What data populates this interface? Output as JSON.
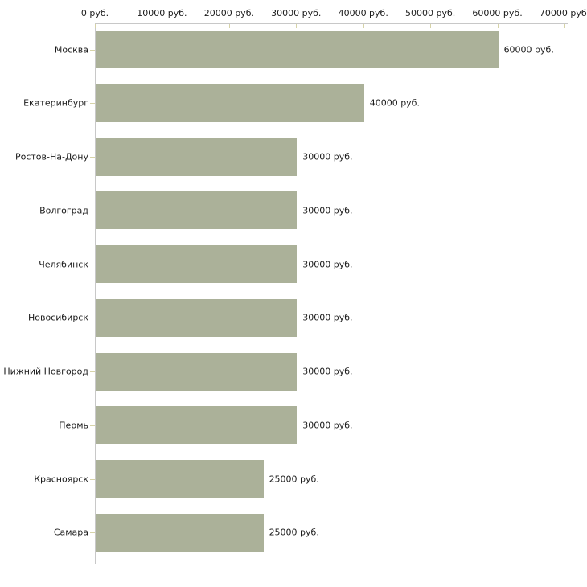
{
  "chart_data": {
    "type": "bar",
    "orientation": "horizontal",
    "title": "",
    "xlabel": "",
    "ylabel": "",
    "categories": [
      "Москва",
      "Екатеринбург",
      "Ростов-На-Дону",
      "Волгоград",
      "Челябинск",
      "Новосибирск",
      "Нижний Новгород",
      "Пермь",
      "Красноярск",
      "Самара"
    ],
    "values": [
      60000,
      40000,
      30000,
      30000,
      30000,
      30000,
      30000,
      30000,
      25000,
      25000
    ],
    "value_labels": [
      "60000 руб.",
      "40000 руб.",
      "30000 руб.",
      "30000 руб.",
      "30000 руб.",
      "30000 руб.",
      "30000 руб.",
      "30000 руб.",
      "25000 руб.",
      "25000 руб."
    ],
    "x_ticks": [
      0,
      10000,
      20000,
      30000,
      40000,
      50000,
      60000,
      70000
    ],
    "x_tick_labels": [
      "0 руб.",
      "10000 руб.",
      "20000 руб.",
      "30000 руб.",
      "40000 руб.",
      "50000 руб.",
      "60000 руб.",
      "70000 руб."
    ],
    "xlim": [
      0,
      70000
    ],
    "grid": false,
    "legend": null,
    "unit": "руб."
  },
  "colors": {
    "bar": "#abb199",
    "axis_line": "#c8c8c8",
    "tick_mark": "#d6d3a8",
    "text": "#1c1c1c",
    "background": "#ffffff"
  }
}
